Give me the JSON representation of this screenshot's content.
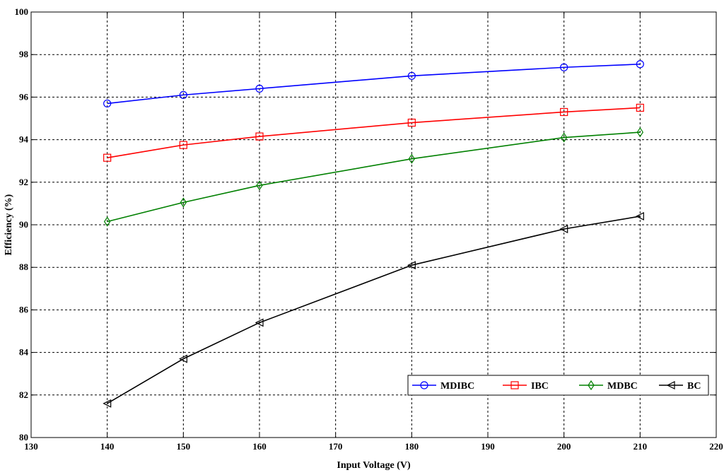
{
  "chart_data": {
    "type": "line",
    "title": "",
    "xlabel": "Input Voltage (V)",
    "ylabel": "Efficiency (%)",
    "xlim": [
      130,
      220
    ],
    "ylim": [
      80,
      100
    ],
    "xticks": [
      130,
      140,
      150,
      160,
      170,
      180,
      190,
      200,
      210,
      220
    ],
    "yticks": [
      80,
      82,
      84,
      86,
      88,
      90,
      92,
      94,
      96,
      98,
      100
    ],
    "x": [
      140,
      150,
      160,
      180,
      200,
      210
    ],
    "grid": true,
    "legend_position": "bottom-right",
    "series": [
      {
        "name": "MDIBC",
        "color": "#0000ff",
        "marker": "circle",
        "values": [
          95.7,
          96.1,
          96.4,
          97.0,
          97.4,
          97.55
        ]
      },
      {
        "name": "IBC",
        "color": "#ff0000",
        "marker": "square",
        "values": [
          93.15,
          93.75,
          94.15,
          94.8,
          95.3,
          95.5
        ]
      },
      {
        "name": "MDBC",
        "color": "#008000",
        "marker": "diamond",
        "values": [
          90.15,
          91.05,
          91.85,
          93.1,
          94.1,
          94.35
        ]
      },
      {
        "name": "BC",
        "color": "#000000",
        "marker": "triangle-left",
        "values": [
          81.6,
          83.7,
          85.4,
          88.1,
          89.8,
          90.4
        ]
      }
    ]
  }
}
